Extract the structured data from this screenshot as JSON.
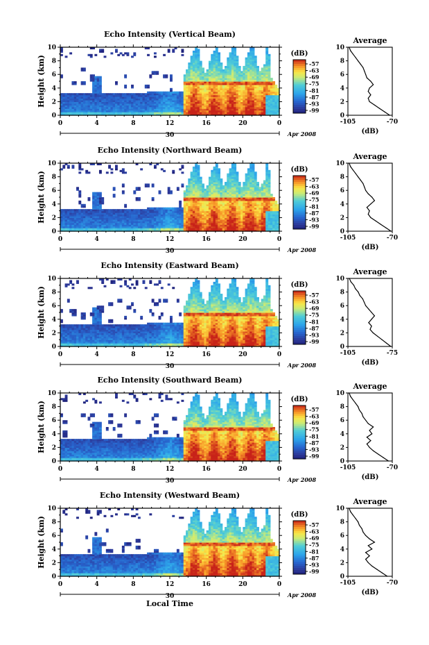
{
  "chart_data": [
    {
      "type": "heatmap",
      "title": "Echo Intensity (Vertical Beam)",
      "ylabel": "Height (km)",
      "xlim": [
        0,
        24
      ],
      "ylim": [
        0,
        10
      ],
      "x_ticks": [
        "0",
        "4",
        "8",
        "12",
        "16",
        "20",
        "0"
      ],
      "y_ticks": [
        "0",
        "2",
        "4",
        "6",
        "8",
        "10"
      ],
      "date_ticks": [
        "30"
      ],
      "date_label": "Apr 2008",
      "colorbar": {
        "unit": "(dB)",
        "ticks": [
          "-57",
          "-63",
          "-69",
          "-75",
          "-81",
          "-87",
          "-93",
          "-99"
        ]
      },
      "average_profile": {
        "title": "Average",
        "xlabel": "(dB)",
        "x_ticks": [
          "-105",
          "-70"
        ],
        "y_ticks": [
          "0",
          "2",
          "4",
          "6",
          "8",
          "10"
        ],
        "xlim": [
          -105,
          -70
        ],
        "ylim": [
          0,
          10
        ],
        "height": [
          0.0,
          0.5,
          1.0,
          1.5,
          2.0,
          2.5,
          3.0,
          3.5,
          4.0,
          4.5,
          5.0,
          5.5,
          6.0,
          6.5,
          7.0,
          7.5,
          8.0,
          8.5,
          9.0,
          9.5,
          10.0
        ],
        "value": [
          -72,
          -76,
          -80,
          -84,
          -88,
          -89,
          -87,
          -89,
          -88,
          -85,
          -87,
          -90,
          -91,
          -92,
          -93,
          -95,
          -97,
          -99,
          -101,
          -103,
          -104
        ]
      }
    },
    {
      "type": "heatmap",
      "title": "Echo Intensity (Northward Beam)",
      "ylabel": "Height (km)",
      "xlim": [
        0,
        24
      ],
      "ylim": [
        0,
        10
      ],
      "x_ticks": [
        "0",
        "4",
        "8",
        "12",
        "16",
        "20",
        "0"
      ],
      "y_ticks": [
        "0",
        "2",
        "4",
        "6",
        "8",
        "10"
      ],
      "date_ticks": [
        "30"
      ],
      "date_label": "Apr 2008",
      "colorbar": {
        "unit": "(dB)",
        "ticks": [
          "-57",
          "-63",
          "-69",
          "-75",
          "-81",
          "-87",
          "-93",
          "-99"
        ]
      },
      "average_profile": {
        "title": "Average",
        "xlabel": "(dB)",
        "x_ticks": [
          "-105",
          "-70"
        ],
        "y_ticks": [
          "0",
          "2",
          "4",
          "6",
          "8",
          "10"
        ],
        "xlim": [
          -105,
          -70
        ],
        "ylim": [
          0,
          10
        ],
        "height": [
          0.0,
          0.5,
          1.0,
          1.5,
          2.0,
          2.5,
          3.0,
          3.5,
          4.0,
          4.5,
          5.0,
          5.5,
          6.0,
          6.5,
          7.0,
          7.5,
          8.0,
          8.5,
          9.0,
          9.5,
          10.0
        ],
        "value": [
          -71,
          -75,
          -79,
          -83,
          -87,
          -89,
          -88,
          -90,
          -87,
          -84,
          -86,
          -89,
          -91,
          -92,
          -93,
          -95,
          -97,
          -99,
          -101,
          -103,
          -104
        ]
      }
    },
    {
      "type": "heatmap",
      "title": "Echo Intensity (Eastward Beam)",
      "ylabel": "Height (km)",
      "xlim": [
        0,
        24
      ],
      "ylim": [
        0,
        10
      ],
      "x_ticks": [
        "0",
        "4",
        "8",
        "12",
        "16",
        "20",
        "0"
      ],
      "y_ticks": [
        "0",
        "2",
        "4",
        "6",
        "8",
        "10"
      ],
      "date_ticks": [
        "30"
      ],
      "date_label": "Apr 2008",
      "colorbar": {
        "unit": "(dB)",
        "ticks": [
          "-57",
          "-63",
          "-69",
          "-75",
          "-81",
          "-87",
          "-93",
          "-99"
        ]
      },
      "average_profile": {
        "title": "Average",
        "xlabel": "(dB)",
        "x_ticks": [
          "-105",
          "-75"
        ],
        "y_ticks": [
          "0",
          "2",
          "4",
          "6",
          "8",
          "10"
        ],
        "xlim": [
          -105,
          -75
        ],
        "ylim": [
          0,
          10
        ],
        "height": [
          0.0,
          0.5,
          1.0,
          1.5,
          2.0,
          2.5,
          3.0,
          3.5,
          4.0,
          4.5,
          5.0,
          5.5,
          6.0,
          6.5,
          7.0,
          7.5,
          8.0,
          8.5,
          9.0,
          9.5,
          10.0
        ],
        "value": [
          -76,
          -79,
          -82,
          -85,
          -88,
          -90,
          -89,
          -91,
          -89,
          -87,
          -89,
          -91,
          -93,
          -94,
          -95,
          -97,
          -98,
          -100,
          -101,
          -103,
          -104
        ]
      }
    },
    {
      "type": "heatmap",
      "title": "Echo Intensity (Southward Beam)",
      "ylabel": "Height (km)",
      "xlim": [
        0,
        24
      ],
      "ylim": [
        0,
        10
      ],
      "x_ticks": [
        "0",
        "4",
        "8",
        "12",
        "16",
        "20",
        "0"
      ],
      "y_ticks": [
        "0",
        "2",
        "4",
        "6",
        "8",
        "10"
      ],
      "date_ticks": [
        "30"
      ],
      "date_label": "Apr 2008",
      "colorbar": {
        "unit": "(dB)",
        "ticks": [
          "-57",
          "-63",
          "-69",
          "-75",
          "-81",
          "-87",
          "-93",
          "-99"
        ]
      },
      "average_profile": {
        "title": "Average",
        "xlabel": "(dB)",
        "x_ticks": [
          "-105",
          "-70"
        ],
        "y_ticks": [
          "0",
          "2",
          "4",
          "6",
          "8",
          "10"
        ],
        "xlim": [
          -105,
          -70
        ],
        "ylim": [
          0,
          10
        ],
        "height": [
          0.0,
          0.5,
          1.0,
          1.5,
          2.0,
          2.5,
          3.0,
          3.5,
          4.0,
          4.5,
          5.0,
          5.5,
          6.0,
          6.5,
          7.0,
          7.5,
          8.0,
          8.5,
          9.0,
          9.5,
          10.0
        ],
        "value": [
          -73,
          -77,
          -81,
          -85,
          -88,
          -90,
          -87,
          -90,
          -86,
          -88,
          -85,
          -89,
          -91,
          -93,
          -94,
          -96,
          -97,
          -99,
          -101,
          -103,
          -104
        ]
      }
    },
    {
      "type": "heatmap",
      "title": "Echo Intensity (Westward Beam)",
      "ylabel": "Height (km)",
      "xlabel": "Local Time",
      "xlim": [
        0,
        24
      ],
      "ylim": [
        0,
        10
      ],
      "x_ticks": [
        "0",
        "4",
        "8",
        "12",
        "16",
        "20",
        "0"
      ],
      "y_ticks": [
        "0",
        "2",
        "4",
        "6",
        "8",
        "10"
      ],
      "date_ticks": [
        "30"
      ],
      "date_label": "Apr 2008",
      "colorbar": {
        "unit": "(dB)",
        "ticks": [
          "-57",
          "-63",
          "-69",
          "-75",
          "-81",
          "-87",
          "-93",
          "-99"
        ]
      },
      "average_profile": {
        "title": "Average",
        "xlabel": "(dB)",
        "x_ticks": [
          "-105",
          "-70"
        ],
        "y_ticks": [
          "0",
          "2",
          "4",
          "6",
          "8",
          "10"
        ],
        "xlim": [
          -105,
          -70
        ],
        "ylim": [
          0,
          10
        ],
        "height": [
          0.0,
          0.5,
          1.0,
          1.5,
          2.0,
          2.5,
          3.0,
          3.5,
          4.0,
          4.5,
          5.0,
          5.5,
          6.0,
          6.5,
          7.0,
          7.5,
          8.0,
          8.5,
          9.0,
          9.5,
          10.0
        ],
        "value": [
          -74,
          -78,
          -82,
          -86,
          -89,
          -91,
          -88,
          -91,
          -86,
          -89,
          -84,
          -88,
          -91,
          -93,
          -94,
          -96,
          -97,
          -99,
          -101,
          -103,
          -104
        ]
      }
    }
  ]
}
